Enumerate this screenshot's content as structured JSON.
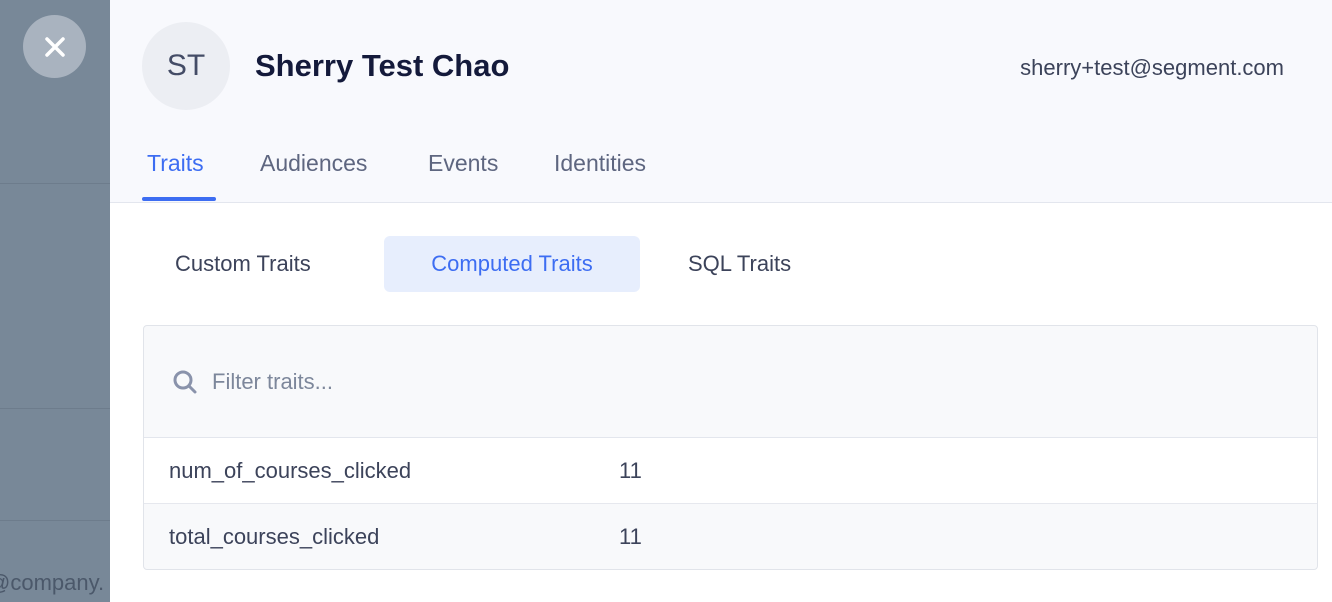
{
  "background": {
    "partial_text": "@company."
  },
  "profile": {
    "initials": "ST",
    "name": "Sherry Test Chao",
    "email": "sherry+test@segment.com"
  },
  "tabs": [
    {
      "label": "Traits",
      "active": true
    },
    {
      "label": "Audiences",
      "active": false
    },
    {
      "label": "Events",
      "active": false
    },
    {
      "label": "Identities",
      "active": false
    }
  ],
  "subtabs": [
    {
      "label": "Custom Traits",
      "active": false
    },
    {
      "label": "Computed Traits",
      "active": true
    },
    {
      "label": "SQL Traits",
      "active": false
    }
  ],
  "filter": {
    "placeholder": "Filter traits...",
    "value": ""
  },
  "traits": [
    {
      "key": "num_of_courses_clicked",
      "value": "11"
    },
    {
      "key": "total_courses_clicked",
      "value": "11"
    }
  ],
  "colors": {
    "accent": "#3d6df2",
    "overlay": "#788898"
  }
}
